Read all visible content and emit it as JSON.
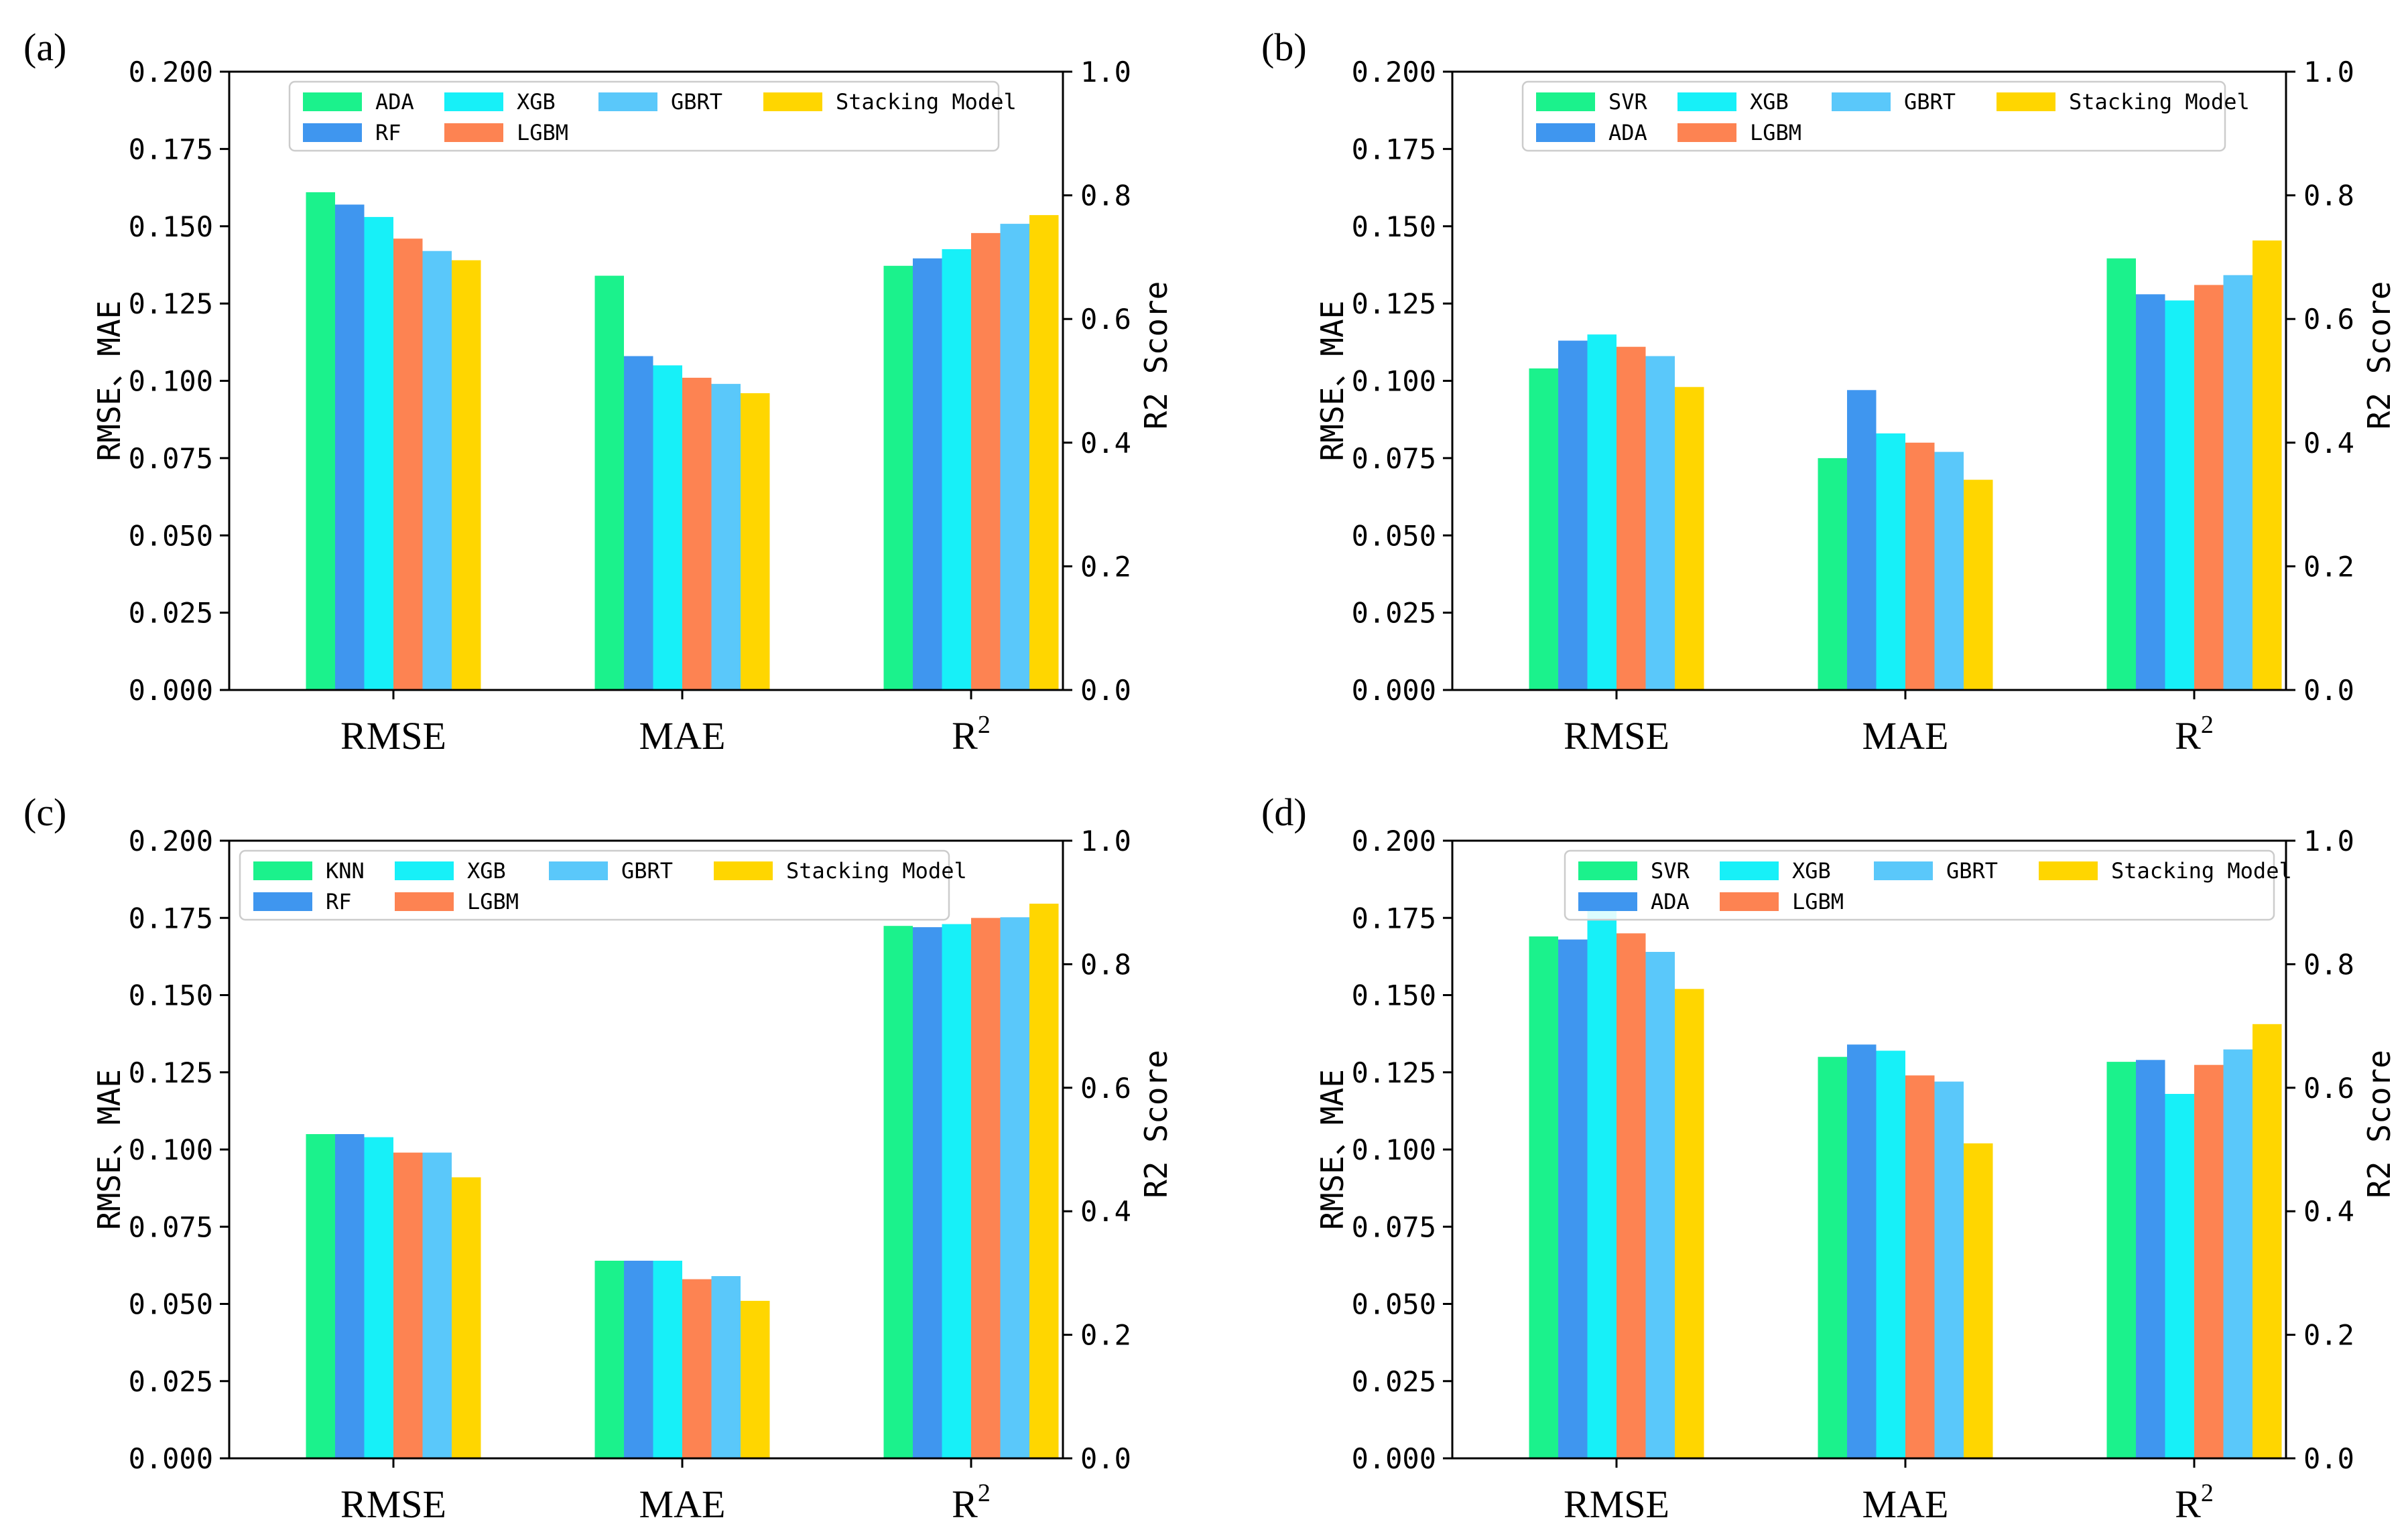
{
  "figure": {
    "colors": {
      "SVR": "#1bf28c",
      "ADA_a": "#1bf28c",
      "KNN": "#1bf28c",
      "RF": "#3f96ef",
      "ADA_b": "#3f96ef",
      "XGB": "#17f0f8",
      "LGBM": "#fd8352",
      "GBRT": "#5ac8fa",
      "Stacking Model": "#ffd600"
    }
  },
  "chart_data": [
    {
      "id": "a",
      "type": "bar",
      "panel_label": "(a)",
      "categories": [
        "RMSE",
        "MAE",
        "R"
      ],
      "category_superscripts": [
        "",
        "",
        "2"
      ],
      "ylabel_left": "RMSE、MAE",
      "ylabel_right": "R2 Score",
      "ylim_left": [
        0,
        0.2
      ],
      "ylim_right": [
        0,
        1.0
      ],
      "left_ticks": [
        "0.000",
        "0.025",
        "0.050",
        "0.075",
        "0.100",
        "0.125",
        "0.150",
        "0.175",
        "0.200"
      ],
      "right_ticks": [
        "0.0",
        "0.2",
        "0.4",
        "0.6",
        "0.8",
        "1.0"
      ],
      "legend_rows": [
        [
          "ADA",
          "XGB",
          "GBRT",
          "Stacking Model"
        ],
        [
          "RF",
          "LGBM"
        ]
      ],
      "legend_placement": "top-right",
      "series": [
        {
          "name": "ADA",
          "color": "#1bf28c",
          "values": [
            0.161,
            0.134,
            0.686
          ]
        },
        {
          "name": "RF",
          "color": "#3f96ef",
          "values": [
            0.157,
            0.108,
            0.698
          ]
        },
        {
          "name": "XGB",
          "color": "#17f0f8",
          "values": [
            0.153,
            0.105,
            0.713
          ]
        },
        {
          "name": "LGBM",
          "color": "#fd8352",
          "values": [
            0.146,
            0.101,
            0.739
          ]
        },
        {
          "name": "GBRT",
          "color": "#5ac8fa",
          "values": [
            0.142,
            0.099,
            0.754
          ]
        },
        {
          "name": "Stacking Model",
          "color": "#ffd600",
          "values": [
            0.139,
            0.096,
            0.768
          ]
        }
      ]
    },
    {
      "id": "b",
      "type": "bar",
      "panel_label": "(b)",
      "categories": [
        "RMSE",
        "MAE",
        "R"
      ],
      "category_superscripts": [
        "",
        "",
        "2"
      ],
      "ylabel_left": "RMSE、MAE",
      "ylabel_right": "R2 Score",
      "ylim_left": [
        0,
        0.2
      ],
      "ylim_right": [
        0,
        1.0
      ],
      "left_ticks": [
        "0.000",
        "0.025",
        "0.050",
        "0.075",
        "0.100",
        "0.125",
        "0.150",
        "0.175",
        "0.200"
      ],
      "right_ticks": [
        "0.0",
        "0.2",
        "0.4",
        "0.6",
        "0.8",
        "1.0"
      ],
      "legend_rows": [
        [
          "SVR",
          "XGB",
          "GBRT",
          "Stacking Model"
        ],
        [
          "ADA",
          "LGBM"
        ]
      ],
      "legend_placement": "top-right",
      "series": [
        {
          "name": "SVR",
          "color": "#1bf28c",
          "values": [
            0.104,
            0.075,
            0.698
          ]
        },
        {
          "name": "ADA",
          "color": "#3f96ef",
          "values": [
            0.113,
            0.097,
            0.64
          ]
        },
        {
          "name": "XGB",
          "color": "#17f0f8",
          "values": [
            0.115,
            0.083,
            0.63
          ]
        },
        {
          "name": "LGBM",
          "color": "#fd8352",
          "values": [
            0.111,
            0.08,
            0.655
          ]
        },
        {
          "name": "GBRT",
          "color": "#5ac8fa",
          "values": [
            0.108,
            0.077,
            0.671
          ]
        },
        {
          "name": "Stacking Model",
          "color": "#ffd600",
          "values": [
            0.098,
            0.068,
            0.727
          ]
        }
      ]
    },
    {
      "id": "c",
      "type": "bar",
      "panel_label": "(c)",
      "categories": [
        "RMSE",
        "MAE",
        "R"
      ],
      "category_superscripts": [
        "",
        "",
        "2"
      ],
      "ylabel_left": "RMSE、MAE",
      "ylabel_right": "R2 Score",
      "ylim_left": [
        0,
        0.2
      ],
      "ylim_right": [
        0,
        1.0
      ],
      "left_ticks": [
        "0.000",
        "0.025",
        "0.050",
        "0.075",
        "0.100",
        "0.125",
        "0.150",
        "0.175",
        "0.200"
      ],
      "right_ticks": [
        "0.0",
        "0.2",
        "0.4",
        "0.6",
        "0.8",
        "1.0"
      ],
      "legend_rows": [
        [
          "KNN",
          "XGB",
          "GBRT",
          "Stacking Model"
        ],
        [
          "RF",
          "LGBM"
        ]
      ],
      "legend_placement": "top-right",
      "series": [
        {
          "name": "KNN",
          "color": "#1bf28c",
          "values": [
            0.105,
            0.064,
            0.862
          ]
        },
        {
          "name": "RF",
          "color": "#3f96ef",
          "values": [
            0.105,
            0.064,
            0.86
          ]
        },
        {
          "name": "XGB",
          "color": "#17f0f8",
          "values": [
            0.104,
            0.064,
            0.865
          ]
        },
        {
          "name": "LGBM",
          "color": "#fd8352",
          "values": [
            0.099,
            0.058,
            0.875
          ]
        },
        {
          "name": "GBRT",
          "color": "#5ac8fa",
          "values": [
            0.099,
            0.059,
            0.876
          ]
        },
        {
          "name": "Stacking Model",
          "color": "#ffd600",
          "values": [
            0.091,
            0.051,
            0.898
          ]
        }
      ]
    },
    {
      "id": "d",
      "type": "bar",
      "panel_label": "(d)",
      "categories": [
        "RMSE",
        "MAE",
        "R"
      ],
      "category_superscripts": [
        "",
        "",
        "2"
      ],
      "ylabel_left": "RMSE、MAE",
      "ylabel_right": "R2 Score",
      "ylim_left": [
        0,
        0.2
      ],
      "ylim_right": [
        0,
        1.0
      ],
      "left_ticks": [
        "0.000",
        "0.025",
        "0.050",
        "0.075",
        "0.100",
        "0.125",
        "0.150",
        "0.175",
        "0.200"
      ],
      "right_ticks": [
        "0.0",
        "0.2",
        "0.4",
        "0.6",
        "0.8",
        "1.0"
      ],
      "legend_rows": [
        [
          "SVR",
          "XGB",
          "GBRT",
          "Stacking Model"
        ],
        [
          "ADA",
          "LGBM"
        ]
      ],
      "legend_placement": "top-right",
      "series": [
        {
          "name": "SVR",
          "color": "#1bf28c",
          "values": [
            0.169,
            0.13,
            0.642
          ]
        },
        {
          "name": "ADA",
          "color": "#3f96ef",
          "values": [
            0.168,
            0.134,
            0.645
          ]
        },
        {
          "name": "XGB",
          "color": "#17f0f8",
          "values": [
            0.181,
            0.132,
            0.59
          ]
        },
        {
          "name": "LGBM",
          "color": "#fd8352",
          "values": [
            0.17,
            0.124,
            0.637
          ]
        },
        {
          "name": "GBRT",
          "color": "#5ac8fa",
          "values": [
            0.164,
            0.122,
            0.662
          ]
        },
        {
          "name": "Stacking Model",
          "color": "#ffd600",
          "values": [
            0.152,
            0.102,
            0.703
          ]
        }
      ]
    }
  ]
}
